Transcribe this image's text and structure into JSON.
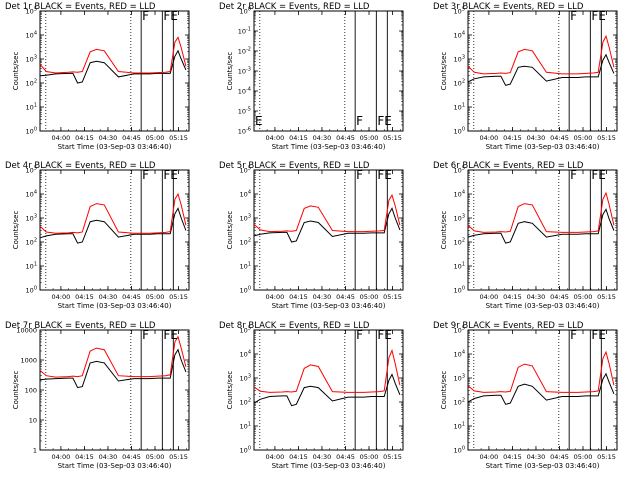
{
  "figure": {
    "colors": {
      "events": "#000000",
      "lld": "#ff0000",
      "axes": "#000000",
      "background": "#ffffff"
    },
    "x_tick_labels": [
      "04:00",
      "04:15",
      "04:30",
      "04:45",
      "05:00",
      "05:15"
    ],
    "xlabel": "Start Time (03-Sep-03 03:46:40)",
    "ylabel": "Counts/sec",
    "exp_tick_labels": [
      "10^0",
      "10^1",
      "10^2",
      "10^3",
      "10^4",
      "10^5"
    ],
    "exp_tick_labels_r2": [
      "10^-6",
      "10^-5",
      "10^-4",
      "10^-3",
      "10^-2",
      "10^-1",
      "10^0"
    ],
    "plain_tick_labels": [
      "1",
      "10",
      "100",
      "1000",
      "10000"
    ]
  },
  "chart_data": [
    {
      "type": "line",
      "title": "Det 1r BLACK = Events, RED = LLD",
      "ylabel": "Counts/sec",
      "xlabel": "Start Time (03-Sep-03 03:46:40)",
      "y_scale": "log",
      "ylim": [
        1,
        100000
      ],
      "x_unit": "minutes since 03:46:40",
      "xlim": [
        0,
        95
      ],
      "flags": [
        "F",
        "FE"
      ],
      "series": [
        {
          "name": "Events",
          "color": "#000000",
          "x": [
            0,
            4,
            10,
            18,
            21,
            24,
            27,
            32,
            36,
            41,
            50,
            60,
            70,
            75,
            80,
            83,
            86,
            88,
            90,
            93
          ],
          "y": [
            200,
            210,
            240,
            250,
            250,
            100,
            110,
            700,
            800,
            700,
            180,
            240,
            240,
            250,
            250,
            250,
            1300,
            2200,
            1000,
            350
          ]
        },
        {
          "name": "LLD",
          "color": "#ff0000",
          "x": [
            0,
            4,
            10,
            18,
            21,
            24,
            27,
            32,
            36,
            41,
            50,
            60,
            70,
            75,
            80,
            83,
            86,
            88,
            90,
            93
          ],
          "y": [
            600,
            300,
            260,
            280,
            290,
            280,
            300,
            2000,
            2500,
            2200,
            300,
            260,
            260,
            270,
            280,
            300,
            5000,
            8000,
            3000,
            500
          ]
        }
      ]
    },
    {
      "type": "line",
      "title": "Det 2r BLACK = Events, RED = LLD",
      "ylabel": "Counts/sec",
      "xlabel": "Start Time (03-Sep-03 03:46:40)",
      "y_scale": "log",
      "ylim": [
        1e-06,
        1
      ],
      "x_unit": "minutes since 03:46:40",
      "xlim": [
        0,
        95
      ],
      "flags": [
        "E",
        "F",
        "FE"
      ],
      "series": []
    },
    {
      "type": "line",
      "title": "Det 3r BLACK = Events, RED = LLD",
      "ylabel": "Counts/sec",
      "xlabel": "Start Time (03-Sep-03 03:46:40)",
      "y_scale": "log",
      "ylim": [
        1,
        100000
      ],
      "x_unit": "minutes since 03:46:40",
      "xlim": [
        0,
        95
      ],
      "flags": [
        "F",
        "FE"
      ],
      "series": [
        {
          "name": "Events",
          "color": "#000000",
          "x": [
            0,
            4,
            10,
            18,
            21,
            24,
            27,
            32,
            36,
            41,
            50,
            60,
            70,
            75,
            80,
            83,
            86,
            88,
            90,
            93
          ],
          "y": [
            110,
            150,
            180,
            190,
            190,
            80,
            90,
            450,
            500,
            450,
            120,
            170,
            170,
            180,
            180,
            180,
            900,
            1500,
            700,
            250
          ]
        },
        {
          "name": "LLD",
          "color": "#ff0000",
          "x": [
            0,
            4,
            10,
            18,
            21,
            24,
            27,
            32,
            36,
            41,
            50,
            60,
            70,
            75,
            80,
            83,
            86,
            88,
            90,
            93
          ],
          "y": [
            500,
            280,
            240,
            250,
            260,
            250,
            270,
            2000,
            2500,
            2200,
            280,
            240,
            240,
            250,
            260,
            280,
            5000,
            9000,
            3000,
            450
          ]
        }
      ]
    },
    {
      "type": "line",
      "title": "Det 4r BLACK = Events, RED = LLD",
      "ylabel": "Counts/sec",
      "xlabel": "Start Time (03-Sep-03 03:46:40)",
      "y_scale": "log",
      "ylim": [
        1,
        100000
      ],
      "x_unit": "minutes since 03:46:40",
      "xlim": [
        0,
        95
      ],
      "flags": [
        "F",
        "FE"
      ],
      "series": [
        {
          "name": "Events",
          "color": "#000000",
          "x": [
            0,
            4,
            10,
            18,
            21,
            24,
            27,
            32,
            36,
            41,
            50,
            60,
            70,
            75,
            80,
            83,
            86,
            88,
            90,
            93
          ],
          "y": [
            150,
            180,
            210,
            220,
            220,
            90,
            100,
            700,
            800,
            700,
            160,
            210,
            210,
            220,
            220,
            220,
            1500,
            2500,
            1000,
            300
          ]
        },
        {
          "name": "LLD",
          "color": "#ff0000",
          "x": [
            0,
            4,
            10,
            18,
            21,
            24,
            27,
            32,
            36,
            41,
            50,
            60,
            70,
            75,
            80,
            83,
            86,
            88,
            90,
            93
          ],
          "y": [
            450,
            260,
            230,
            240,
            250,
            240,
            260,
            3000,
            4000,
            3500,
            260,
            230,
            230,
            240,
            250,
            270,
            6000,
            10000,
            3500,
            500
          ]
        }
      ]
    },
    {
      "type": "line",
      "title": "Det 5r BLACK = Events, RED = LLD",
      "ylabel": "Counts/sec",
      "xlabel": "Start Time (03-Sep-03 03:46:40)",
      "y_scale": "log",
      "ylim": [
        1,
        100000
      ],
      "x_unit": "minutes since 03:46:40",
      "xlim": [
        0,
        95
      ],
      "flags": [
        "F",
        "FE"
      ],
      "series": [
        {
          "name": "Events",
          "color": "#000000",
          "x": [
            0,
            4,
            10,
            18,
            21,
            24,
            27,
            32,
            36,
            41,
            50,
            60,
            70,
            75,
            80,
            83,
            86,
            88,
            90,
            93
          ],
          "y": [
            180,
            210,
            240,
            250,
            250,
            100,
            110,
            650,
            750,
            650,
            170,
            230,
            230,
            240,
            240,
            240,
            1500,
            2500,
            1000,
            320
          ]
        },
        {
          "name": "LLD",
          "color": "#ff0000",
          "x": [
            0,
            4,
            10,
            18,
            21,
            24,
            27,
            32,
            36,
            41,
            50,
            60,
            70,
            75,
            80,
            83,
            86,
            88,
            90,
            93
          ],
          "y": [
            550,
            320,
            270,
            280,
            290,
            280,
            300,
            2500,
            3200,
            2800,
            300,
            270,
            270,
            280,
            290,
            300,
            5500,
            9000,
            3200,
            500
          ]
        }
      ]
    },
    {
      "type": "line",
      "title": "Det 6r BLACK = Events, RED = LLD",
      "ylabel": "Counts/sec",
      "xlabel": "Start Time (03-Sep-03 03:46:40)",
      "y_scale": "log",
      "ylim": [
        1,
        100000
      ],
      "x_unit": "minutes since 03:46:40",
      "xlim": [
        0,
        95
      ],
      "flags": [
        "F",
        "FE"
      ],
      "series": [
        {
          "name": "Events",
          "color": "#000000",
          "x": [
            0,
            4,
            10,
            18,
            21,
            24,
            27,
            32,
            36,
            41,
            50,
            60,
            70,
            75,
            80,
            83,
            86,
            88,
            90,
            93
          ],
          "y": [
            160,
            190,
            220,
            230,
            230,
            90,
            100,
            600,
            700,
            600,
            160,
            210,
            210,
            220,
            220,
            220,
            1400,
            2300,
            900,
            300
          ]
        },
        {
          "name": "LLD",
          "color": "#ff0000",
          "x": [
            0,
            4,
            10,
            18,
            21,
            24,
            27,
            32,
            36,
            41,
            50,
            60,
            70,
            75,
            80,
            83,
            86,
            88,
            90,
            93
          ],
          "y": [
            500,
            290,
            250,
            260,
            270,
            260,
            280,
            3000,
            4000,
            3500,
            270,
            250,
            250,
            260,
            270,
            290,
            6000,
            11000,
            3500,
            500
          ]
        }
      ]
    },
    {
      "type": "line",
      "title": "Det 7r BLACK = Events, RED = LLD",
      "ylabel": "Counts/sec",
      "xlabel": "Start Time (03-Sep-03 03:46:40)",
      "y_scale": "log",
      "ylim": [
        1,
        10000
      ],
      "x_unit": "minutes since 03:46:40",
      "xlim": [
        0,
        95
      ],
      "flags": [
        "F",
        "FE"
      ],
      "series": [
        {
          "name": "Events",
          "color": "#000000",
          "x": [
            0,
            4,
            10,
            18,
            21,
            24,
            27,
            32,
            36,
            41,
            50,
            60,
            70,
            75,
            80,
            83,
            86,
            88,
            90,
            93
          ],
          "y": [
            220,
            230,
            240,
            250,
            250,
            120,
            130,
            800,
            900,
            800,
            200,
            240,
            240,
            250,
            250,
            250,
            1500,
            2200,
            1000,
            400
          ]
        },
        {
          "name": "LLD",
          "color": "#ff0000",
          "x": [
            0,
            4,
            10,
            18,
            21,
            24,
            27,
            32,
            36,
            41,
            50,
            60,
            70,
            75,
            80,
            83,
            86,
            88,
            90,
            93
          ],
          "y": [
            450,
            300,
            270,
            280,
            290,
            280,
            300,
            2000,
            2500,
            2200,
            300,
            280,
            280,
            290,
            300,
            320,
            4000,
            6000,
            2500,
            600
          ]
        }
      ]
    },
    {
      "type": "line",
      "title": "Det 8r BLACK = Events, RED = LLD",
      "ylabel": "Counts/sec",
      "xlabel": "Start Time (03-Sep-03 03:46:40)",
      "y_scale": "log",
      "ylim": [
        1,
        100000
      ],
      "x_unit": "minutes since 03:46:40",
      "xlim": [
        0,
        95
      ],
      "flags": [
        "F",
        "FE"
      ],
      "series": [
        {
          "name": "Events",
          "color": "#000000",
          "x": [
            0,
            4,
            10,
            18,
            21,
            24,
            27,
            32,
            36,
            41,
            50,
            60,
            70,
            75,
            80,
            83,
            86,
            88,
            90,
            93
          ],
          "y": [
            90,
            130,
            170,
            180,
            180,
            70,
            80,
            400,
            450,
            400,
            110,
            160,
            160,
            170,
            170,
            170,
            800,
            1400,
            600,
            200
          ]
        },
        {
          "name": "LLD",
          "color": "#ff0000",
          "x": [
            0,
            4,
            10,
            18,
            21,
            24,
            27,
            32,
            36,
            41,
            50,
            60,
            70,
            75,
            80,
            83,
            86,
            88,
            90,
            93
          ],
          "y": [
            420,
            280,
            250,
            260,
            270,
            260,
            280,
            2500,
            3500,
            3000,
            270,
            250,
            250,
            260,
            270,
            290,
            7000,
            14000,
            4000,
            500
          ]
        }
      ]
    },
    {
      "type": "line",
      "title": "Det 9r BLACK = Events, RED = LLD",
      "ylabel": "Counts/sec",
      "xlabel": "Start Time (03-Sep-03 03:46:40)",
      "y_scale": "log",
      "ylim": [
        1,
        100000
      ],
      "x_unit": "minutes since 03:46:40",
      "xlim": [
        0,
        95
      ],
      "flags": [
        "F",
        "FE"
      ],
      "series": [
        {
          "name": "Events",
          "color": "#000000",
          "x": [
            0,
            4,
            10,
            18,
            21,
            24,
            27,
            32,
            36,
            41,
            50,
            60,
            70,
            75,
            80,
            83,
            86,
            88,
            90,
            93
          ],
          "y": [
            100,
            140,
            180,
            190,
            190,
            80,
            90,
            450,
            550,
            450,
            120,
            170,
            170,
            180,
            180,
            180,
            900,
            1500,
            650,
            220
          ]
        },
        {
          "name": "LLD",
          "color": "#ff0000",
          "x": [
            0,
            4,
            10,
            18,
            21,
            24,
            27,
            32,
            36,
            41,
            50,
            60,
            70,
            75,
            80,
            83,
            86,
            88,
            90,
            93
          ],
          "y": [
            480,
            290,
            250,
            260,
            270,
            260,
            280,
            2800,
            3800,
            3200,
            270,
            250,
            250,
            260,
            270,
            290,
            6500,
            12000,
            3800,
            500
          ]
        }
      ]
    }
  ]
}
